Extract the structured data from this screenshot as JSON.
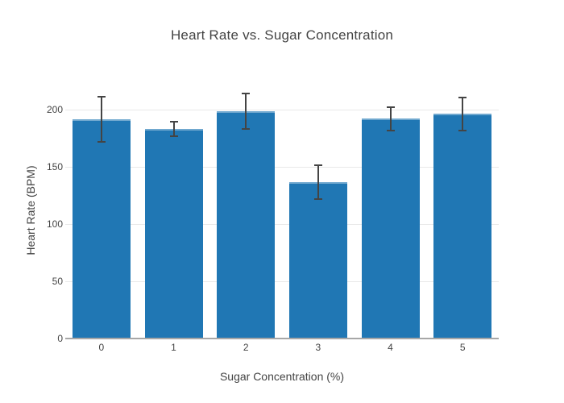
{
  "title": "Heart Rate vs. Sugar Concentration",
  "chart_data": {
    "type": "bar",
    "title": "Heart Rate vs. Sugar Concentration",
    "xlabel": "Sugar Concentration (%)",
    "ylabel": "Heart Rate (BPM)",
    "categories": [
      "0",
      "1",
      "2",
      "3",
      "4",
      "5"
    ],
    "values": [
      191.5,
      183.3,
      198.5,
      136.4,
      192.3,
      196.3
    ],
    "error_bars": [
      20.6,
      7.3,
      16.2,
      15.5,
      11.0,
      15.1
    ],
    "yticks": [
      0,
      50,
      100,
      150,
      200
    ],
    "ylim": [
      0,
      225.5
    ],
    "grid": true,
    "legend": "none",
    "colors": {
      "bar": "#2077b4",
      "bar_top_edge": "#70a8cf",
      "error_bar": "#444444",
      "gridline": "#e9e9e9",
      "axis_line": "#a7a7a7",
      "text": "#444444",
      "background": "#ffffff"
    }
  }
}
